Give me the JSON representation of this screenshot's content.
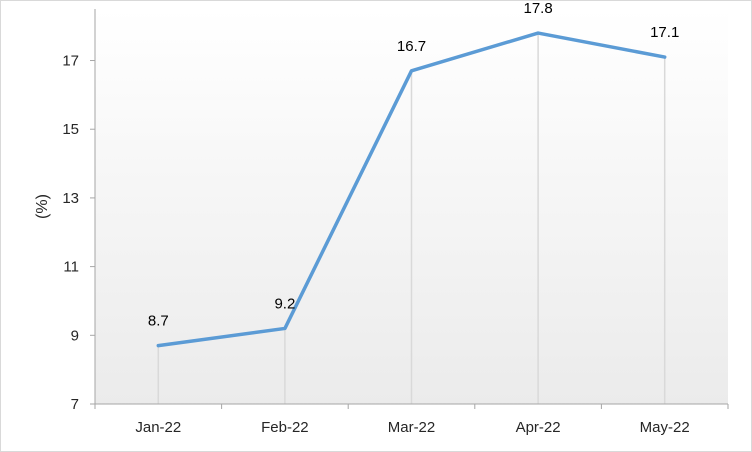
{
  "chart_data": {
    "type": "line",
    "categories": [
      "Jan-22",
      "Feb-22",
      "Mar-22",
      "Apr-22",
      "May-22"
    ],
    "series": [
      {
        "values": [
          8.7,
          9.2,
          16.7,
          17.8,
          17.1
        ]
      }
    ],
    "data_labels": [
      "8.7",
      "9.2",
      "16.7",
      "17.8",
      "17.1"
    ],
    "title": "",
    "xlabel": "",
    "ylabel": "(%)",
    "ylim": [
      7,
      18.5
    ],
    "yticks": [
      7,
      9,
      11,
      13,
      15,
      17
    ],
    "grid": "vertical drop lines at each category",
    "legend": "none",
    "colors": {
      "line": "#5b9bd5",
      "drop_lines": "#d9d9d9",
      "plot_gradient_top": "#ffffff",
      "plot_gradient_bottom": "#ebebeb",
      "axis": "#a6a6a6"
    }
  }
}
